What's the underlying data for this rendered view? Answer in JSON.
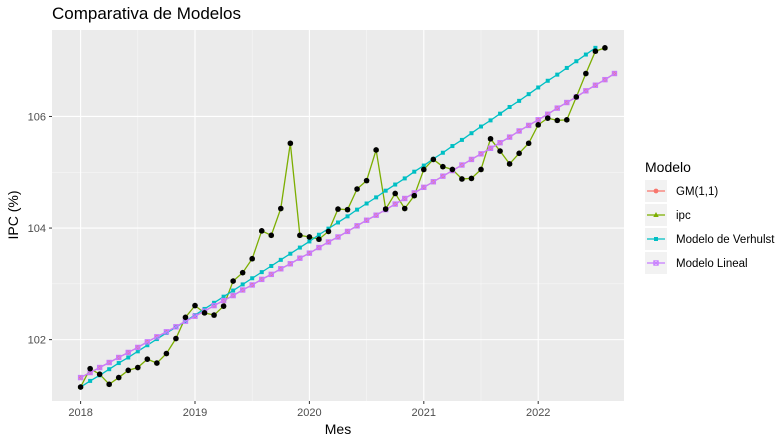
{
  "chart_data": {
    "type": "line",
    "title": "Comparativa de Modelos",
    "xlabel": "Mes",
    "ylabel": "IPC (%)",
    "x_start": "2018-01",
    "x_step": "month",
    "xlim": [
      "2017-10",
      "2022-10"
    ],
    "ylim": [
      100.9,
      107.55
    ],
    "x_ticks": [
      {
        "date": "2018-01",
        "label": "2018"
      },
      {
        "date": "2019-01",
        "label": "2019"
      },
      {
        "date": "2020-01",
        "label": "2020"
      },
      {
        "date": "2021-01",
        "label": "2021"
      },
      {
        "date": "2022-01",
        "label": "2022"
      }
    ],
    "y_ticks": [
      102,
      104,
      106
    ],
    "y_tick_labels": [
      "102",
      "104",
      "106"
    ],
    "grid": true,
    "legend_position": "right",
    "legend_title": "Modelo",
    "series": [
      {
        "name": "GM(1,1)",
        "color": "#F8766D",
        "marker": "circle",
        "values": [
          101.32,
          101.41,
          101.5,
          101.59,
          101.68,
          101.77,
          101.86,
          101.96,
          102.05,
          102.14,
          102.23,
          102.33,
          102.42,
          102.51,
          102.61,
          102.7,
          102.79,
          102.89,
          102.98,
          103.08,
          103.17,
          103.27,
          103.36,
          103.46,
          103.55,
          103.65,
          103.75,
          103.84,
          103.94,
          104.04,
          104.14,
          104.23,
          104.33,
          104.43,
          104.53,
          104.63,
          104.73,
          104.83,
          104.93,
          105.03,
          105.13,
          105.23,
          105.33,
          105.43,
          105.53,
          105.63,
          105.74,
          105.84,
          105.94,
          106.04,
          106.15,
          106.25,
          106.35,
          106.46,
          106.56,
          106.66,
          106.77
        ]
      },
      {
        "name": "ipc",
        "color": "#7CAE00",
        "marker": "triangle",
        "values": [
          101.15,
          101.48,
          101.38,
          101.2,
          101.32,
          101.45,
          101.5,
          101.65,
          101.58,
          101.75,
          102.02,
          102.4,
          102.61,
          102.48,
          102.44,
          102.6,
          103.05,
          103.2,
          103.45,
          103.95,
          103.87,
          104.35,
          105.52,
          103.87,
          103.84,
          103.8,
          103.94,
          104.34,
          104.33,
          104.7,
          104.85,
          105.4,
          104.34,
          104.62,
          104.35,
          104.58,
          105.05,
          105.23,
          105.1,
          105.05,
          104.88,
          104.89,
          105.05,
          105.6,
          105.38,
          105.15,
          105.34,
          105.52,
          105.85,
          105.97,
          105.93,
          105.94,
          106.35,
          106.77,
          107.17,
          107.23
        ]
      },
      {
        "name": "Modelo de Verhulst",
        "color": "#00BFC4",
        "marker": "square",
        "values": [
          101.15,
          101.26,
          101.36,
          101.47,
          101.58,
          101.68,
          101.79,
          101.9,
          102.01,
          102.12,
          102.22,
          102.33,
          102.44,
          102.55,
          102.66,
          102.77,
          102.88,
          102.99,
          103.1,
          103.21,
          103.32,
          103.43,
          103.54,
          103.65,
          103.76,
          103.88,
          103.99,
          104.1,
          104.21,
          104.33,
          104.44,
          104.55,
          104.67,
          104.78,
          104.89,
          105.01,
          105.12,
          105.24,
          105.35,
          105.47,
          105.58,
          105.7,
          105.82,
          105.93,
          106.05,
          106.17,
          106.28,
          106.4,
          106.52,
          106.64,
          106.75,
          106.87,
          106.99,
          107.11,
          107.23
        ]
      },
      {
        "name": "Modelo Lineal",
        "color": "#C77CFF",
        "marker": "square-cross",
        "values": [
          101.32,
          101.41,
          101.5,
          101.59,
          101.68,
          101.77,
          101.86,
          101.96,
          102.05,
          102.14,
          102.23,
          102.33,
          102.42,
          102.51,
          102.61,
          102.7,
          102.79,
          102.89,
          102.98,
          103.08,
          103.17,
          103.27,
          103.36,
          103.46,
          103.55,
          103.65,
          103.75,
          103.84,
          103.94,
          104.04,
          104.14,
          104.23,
          104.33,
          104.43,
          104.53,
          104.63,
          104.73,
          104.83,
          104.93,
          105.03,
          105.13,
          105.23,
          105.33,
          105.43,
          105.53,
          105.63,
          105.74,
          105.84,
          105.94,
          106.04,
          106.15,
          106.25,
          106.35,
          106.46,
          106.56,
          106.66,
          106.77
        ]
      }
    ]
  }
}
